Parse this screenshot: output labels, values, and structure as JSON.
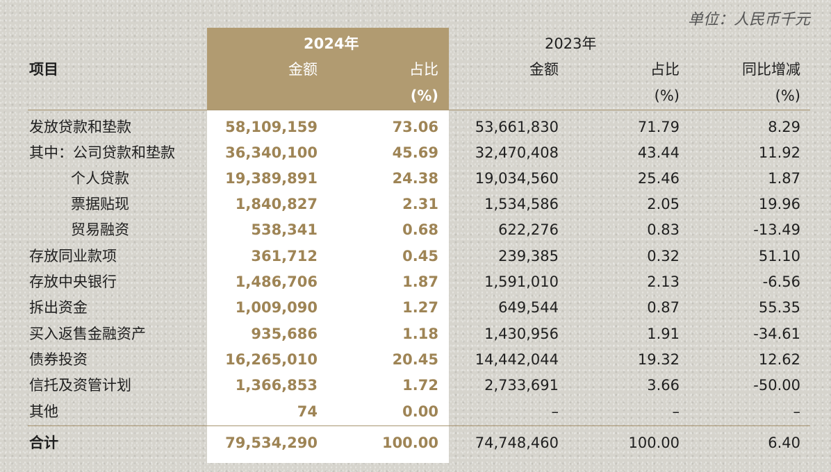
{
  "unit_note": "单位：人民币千元",
  "header": {
    "item": "项目",
    "year_2024": "2024年",
    "year_2023": "2023年",
    "amount_2024": "金额",
    "share_2024": "占比",
    "share_2024_pct": "(%)",
    "amount_2023": "金额",
    "share_2023": "占比",
    "share_2023_pct": "(%)",
    "yoy": "同比增减",
    "yoy_pct": "(%)"
  },
  "rows": [
    {
      "label": "发放贷款和垫款",
      "a2024": "58,109,159",
      "s2024": "73.06",
      "a2023": "53,661,830",
      "s2023": "71.79",
      "yoy": "8.29"
    },
    {
      "label": "其中：公司贷款和垫款",
      "a2024": "36,340,100",
      "s2024": "45.69",
      "a2023": "32,470,408",
      "s2023": "43.44",
      "yoy": "11.92"
    },
    {
      "label": "个人贷款",
      "a2024": "19,389,891",
      "s2024": "24.38",
      "a2023": "19,034,560",
      "s2023": "25.46",
      "yoy": "1.87"
    },
    {
      "label": "票据贴现",
      "a2024": "1,840,827",
      "s2024": "2.31",
      "a2023": "1,534,586",
      "s2023": "2.05",
      "yoy": "19.96"
    },
    {
      "label": "贸易融资",
      "a2024": "538,341",
      "s2024": "0.68",
      "a2023": "622,276",
      "s2023": "0.83",
      "yoy": "-13.49"
    },
    {
      "label": "存放同业款项",
      "a2024": "361,712",
      "s2024": "0.45",
      "a2023": "239,385",
      "s2023": "0.32",
      "yoy": "51.10"
    },
    {
      "label": "存放中央银行",
      "a2024": "1,486,706",
      "s2024": "1.87",
      "a2023": "1,591,010",
      "s2023": "2.13",
      "yoy": "-6.56"
    },
    {
      "label": "拆出资金",
      "a2024": "1,009,090",
      "s2024": "1.27",
      "a2023": "649,544",
      "s2023": "0.87",
      "yoy": "55.35"
    },
    {
      "label": "买入返售金融资产",
      "a2024": "935,686",
      "s2024": "1.18",
      "a2023": "1,430,956",
      "s2023": "1.91",
      "yoy": "-34.61"
    },
    {
      "label": "债券投资",
      "a2024": "16,265,010",
      "s2024": "20.45",
      "a2023": "14,442,044",
      "s2023": "19.32",
      "yoy": "12.62"
    },
    {
      "label": "信托及资管计划",
      "a2024": "1,366,853",
      "s2024": "1.72",
      "a2023": "2,733,691",
      "s2023": "3.66",
      "yoy": "-50.00"
    },
    {
      "label": "其他",
      "a2024": "74",
      "s2024": "0.00",
      "a2023": "–",
      "s2023": "–",
      "yoy": "–"
    }
  ],
  "total": {
    "label": "合计",
    "a2024": "79,534,290",
    "s2024": "100.00",
    "a2023": "74,748,460",
    "s2023": "100.00",
    "yoy": "6.40"
  }
}
